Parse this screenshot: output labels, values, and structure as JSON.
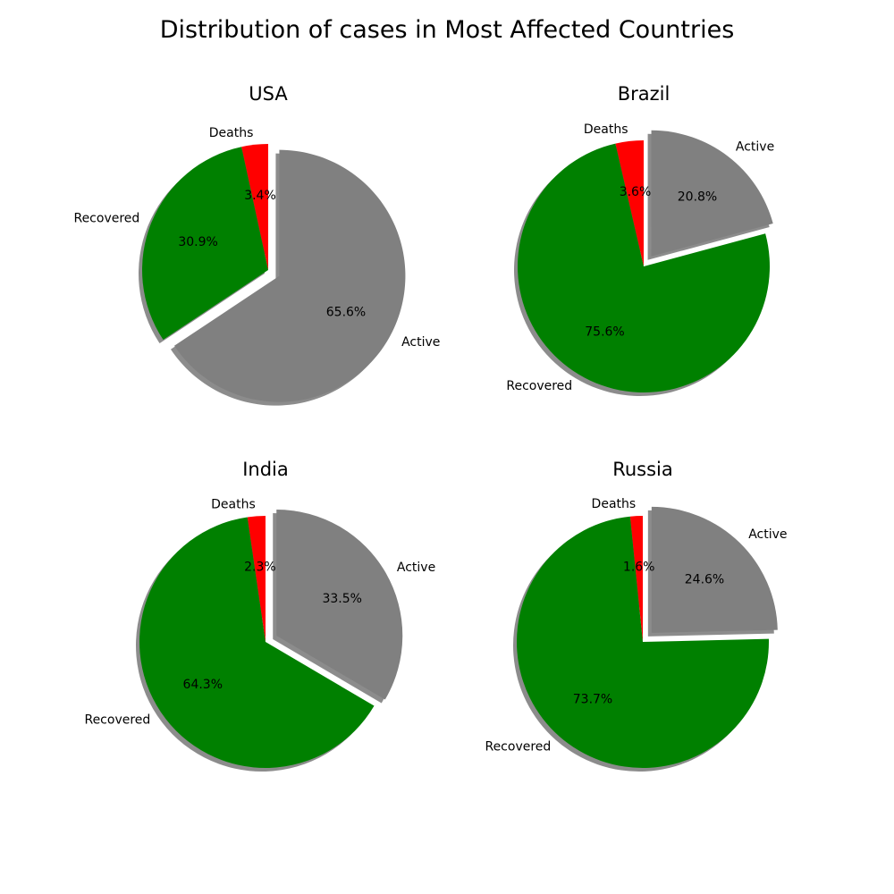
{
  "figure": {
    "title": "Distribution of cases in Most Affected Countries"
  },
  "colors": {
    "Deaths": "#ff0000",
    "Recovered": "#008000",
    "Active": "#808080"
  },
  "chart_data": [
    {
      "type": "pie",
      "title": "USA",
      "labels": [
        "Deaths",
        "Recovered",
        "Active"
      ],
      "values": [
        3.4,
        30.9,
        65.6
      ],
      "value_labels": [
        "3.4%",
        "30.9%",
        "65.6%"
      ],
      "exploded": "Active",
      "shadow": true
    },
    {
      "type": "pie",
      "title": "Brazil",
      "labels": [
        "Deaths",
        "Recovered",
        "Active"
      ],
      "values": [
        3.6,
        75.6,
        20.8
      ],
      "value_labels": [
        "3.6%",
        "75.6%",
        "20.8%"
      ],
      "exploded": "Active",
      "shadow": true
    },
    {
      "type": "pie",
      "title": "India",
      "labels": [
        "Deaths",
        "Recovered",
        "Active"
      ],
      "values": [
        2.3,
        64.3,
        33.5
      ],
      "value_labels": [
        "2.3%",
        "64.3%",
        "33.5%"
      ],
      "exploded": "Active",
      "shadow": true
    },
    {
      "type": "pie",
      "title": "Russia",
      "labels": [
        "Deaths",
        "Recovered",
        "Active"
      ],
      "values": [
        1.6,
        73.7,
        24.6
      ],
      "value_labels": [
        "1.6%",
        "73.7%",
        "24.6%"
      ],
      "exploded": "Active",
      "shadow": true
    }
  ]
}
